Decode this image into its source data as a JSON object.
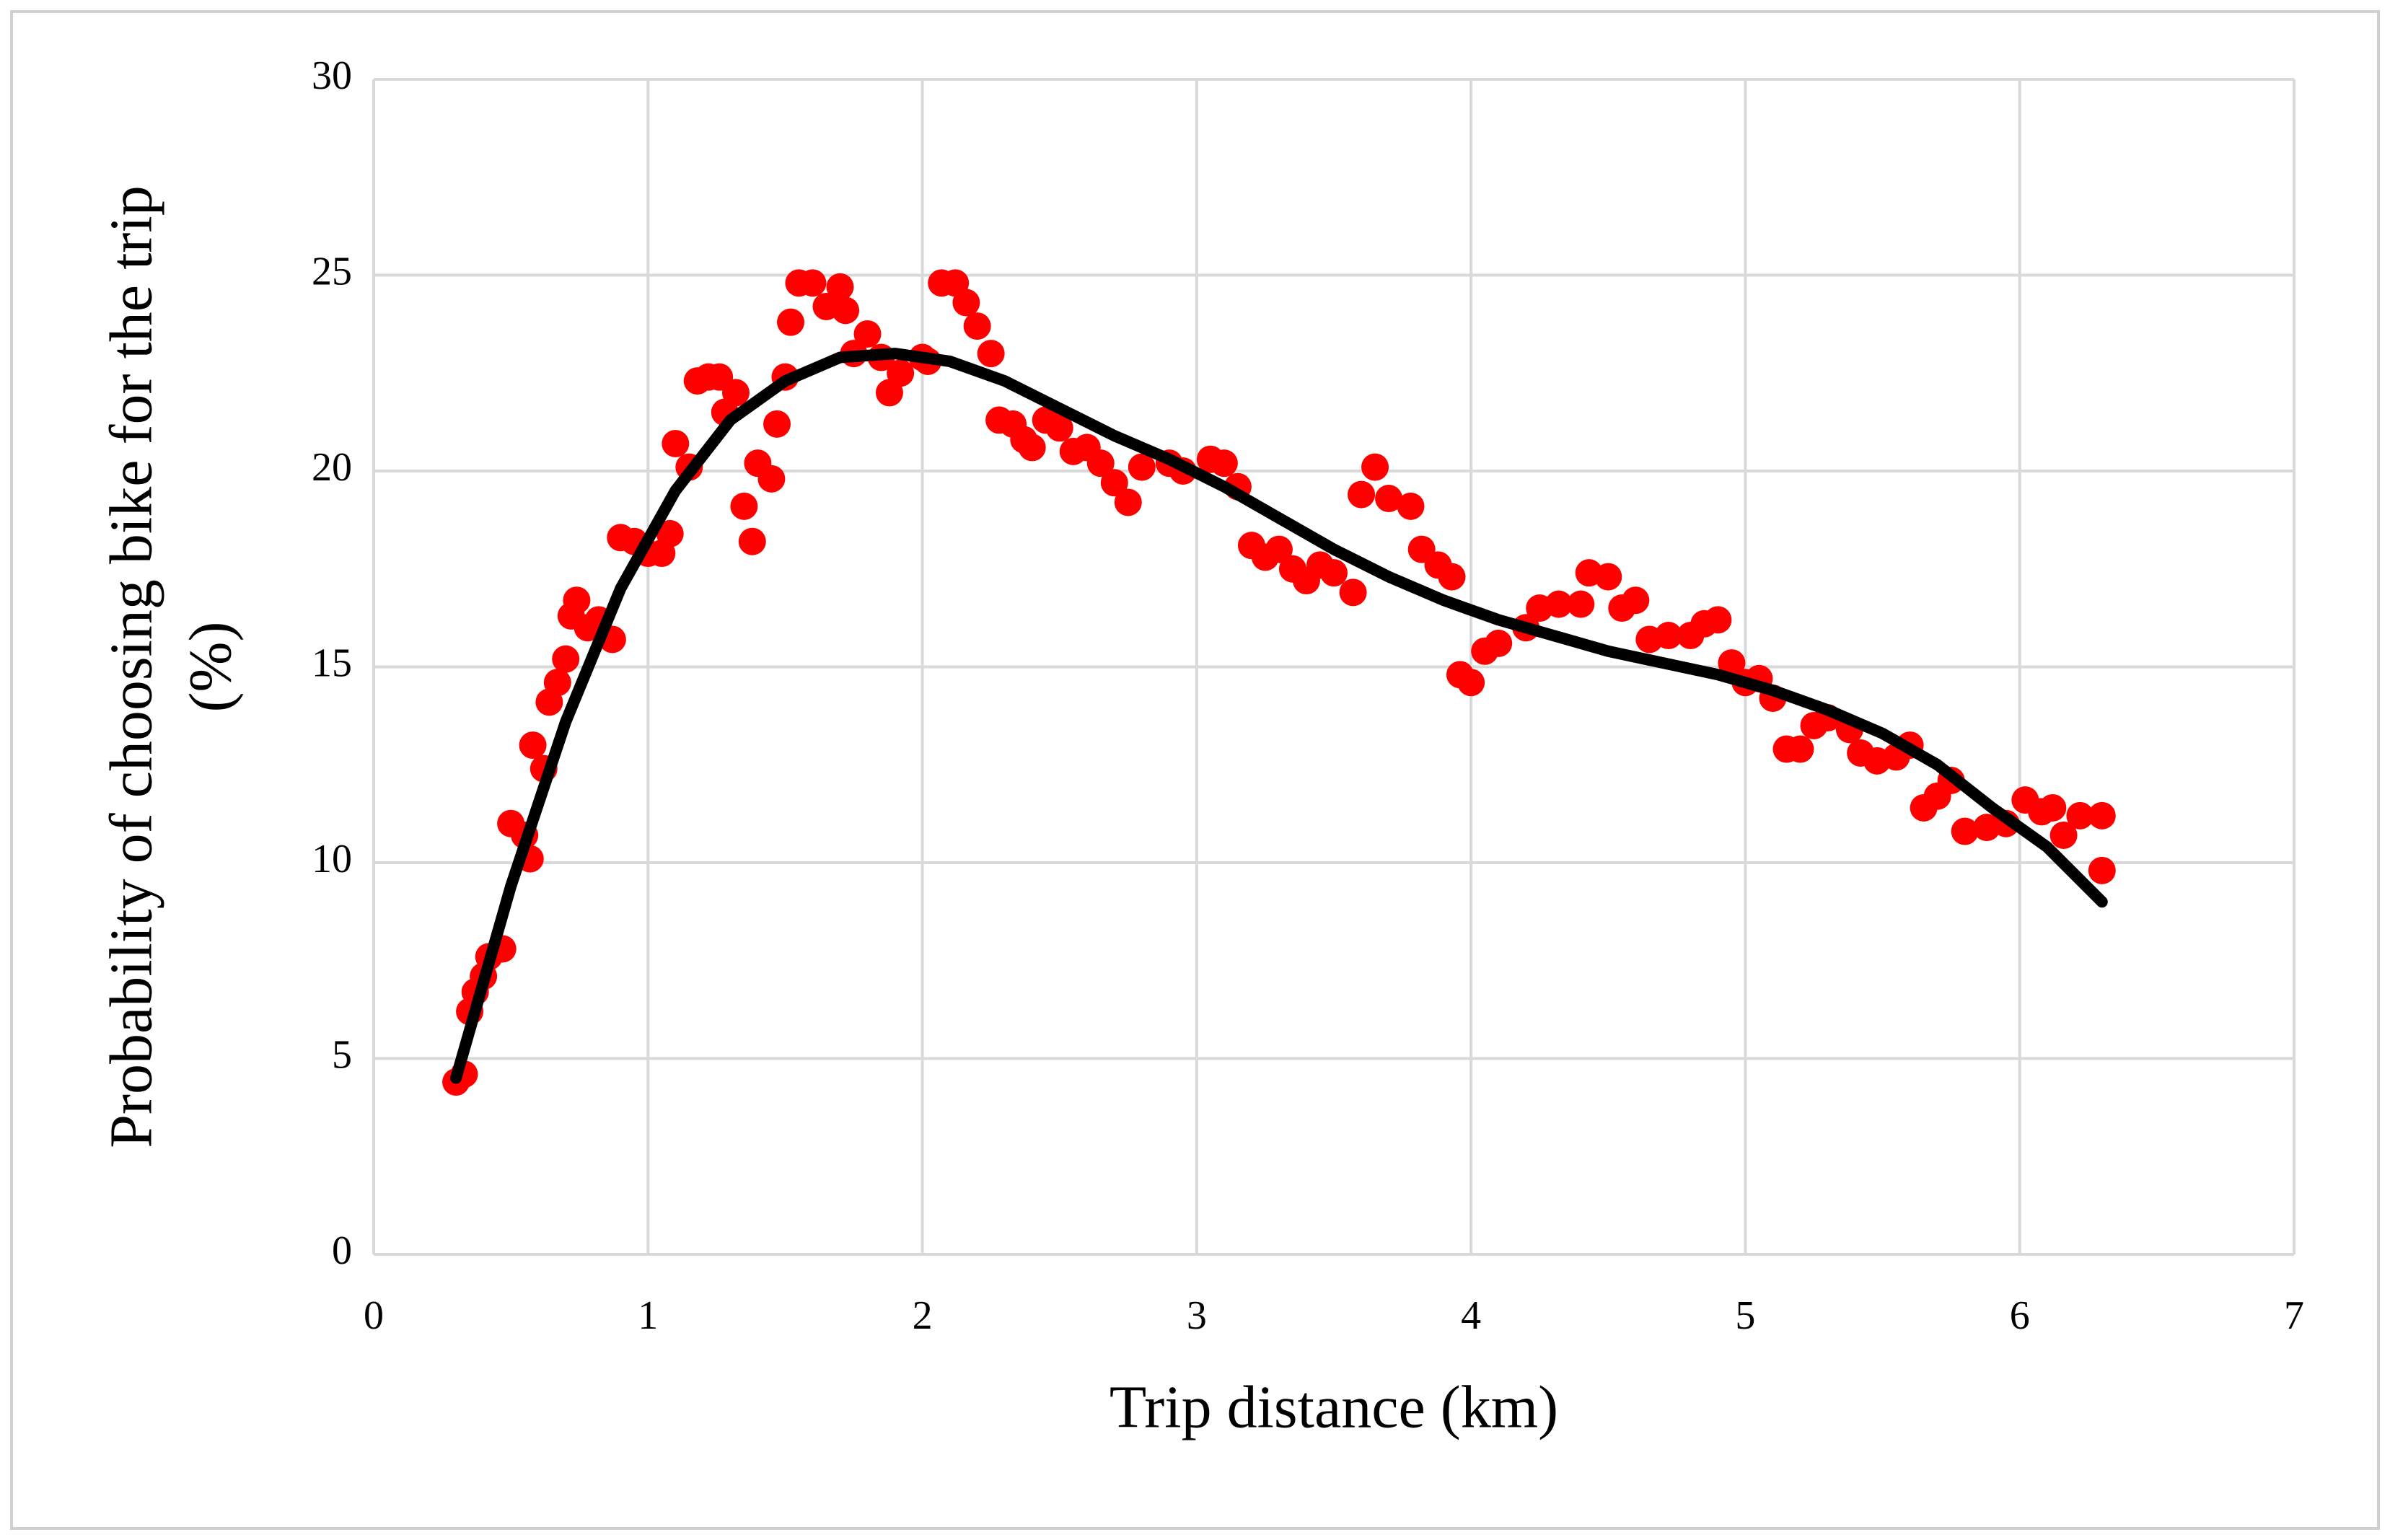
{
  "chart_data": {
    "type": "scatter",
    "xlabel": "Trip distance (km)",
    "ylabel": [
      "Probability of choosing bike for the trip",
      "(%)"
    ],
    "xlim": [
      0,
      7
    ],
    "xticks": [
      0,
      1,
      2,
      3,
      4,
      5,
      6,
      7
    ],
    "ylim": [
      0,
      30
    ],
    "yticks": [
      0,
      5,
      10,
      15,
      20,
      25,
      30
    ],
    "grid": true,
    "series": [
      {
        "style": "markers",
        "color": "#ff0000",
        "x": [
          0.3,
          0.33,
          0.35,
          0.37,
          0.4,
          0.42,
          0.47,
          0.5,
          0.55,
          0.57,
          0.58,
          0.62,
          0.64,
          0.67,
          0.7,
          0.72,
          0.74,
          0.78,
          0.82,
          0.87,
          0.9,
          0.95,
          1.0,
          1.05,
          1.08,
          1.1,
          1.15,
          1.18,
          1.22,
          1.26,
          1.28,
          1.32,
          1.35,
          1.38,
          1.4,
          1.45,
          1.47,
          1.5,
          1.52,
          1.55,
          1.6,
          1.65,
          1.7,
          1.72,
          1.75,
          1.8,
          1.85,
          1.88,
          1.92,
          2.0,
          2.02,
          2.07,
          2.12,
          2.16,
          2.2,
          2.25,
          2.28,
          2.33,
          2.37,
          2.4,
          2.45,
          2.5,
          2.55,
          2.6,
          2.65,
          2.7,
          2.75,
          2.8,
          2.9,
          2.95,
          3.05,
          3.1,
          3.15,
          3.2,
          3.25,
          3.3,
          3.35,
          3.4,
          3.45,
          3.5,
          3.57,
          3.6,
          3.65,
          3.7,
          3.78,
          3.82,
          3.88,
          3.93,
          3.96,
          4.0,
          4.05,
          4.1,
          4.2,
          4.25,
          4.32,
          4.4,
          4.43,
          4.5,
          4.55,
          4.6,
          4.65,
          4.72,
          4.8,
          4.85,
          4.9,
          4.95,
          5.0,
          5.05,
          5.1,
          5.15,
          5.2,
          5.25,
          5.3,
          5.38,
          5.42,
          5.48,
          5.55,
          5.6,
          5.65,
          5.7,
          5.75,
          5.8,
          5.88,
          5.95,
          6.02,
          6.08,
          6.12,
          6.16,
          6.22,
          6.3,
          6.3
        ],
        "values": [
          4.4,
          4.6,
          6.2,
          6.7,
          7.1,
          7.6,
          7.8,
          11.0,
          10.7,
          10.1,
          13.0,
          12.4,
          14.1,
          14.6,
          15.2,
          16.3,
          16.7,
          16.0,
          16.2,
          15.7,
          18.3,
          18.2,
          17.9,
          17.9,
          18.4,
          20.7,
          20.1,
          22.3,
          22.4,
          22.4,
          21.5,
          22.0,
          19.1,
          18.2,
          20.2,
          19.8,
          21.2,
          22.4,
          23.8,
          24.8,
          24.8,
          24.2,
          24.7,
          24.1,
          23.0,
          23.5,
          22.9,
          22.0,
          22.5,
          22.9,
          22.8,
          24.8,
          24.8,
          24.3,
          23.7,
          23.0,
          21.3,
          21.2,
          20.8,
          20.6,
          21.3,
          21.1,
          20.5,
          20.6,
          20.2,
          19.7,
          19.2,
          20.1,
          20.2,
          20.0,
          20.3,
          20.2,
          19.6,
          18.1,
          17.8,
          18.0,
          17.5,
          17.2,
          17.6,
          17.4,
          16.9,
          19.4,
          20.1,
          19.3,
          19.1,
          18.0,
          17.6,
          17.3,
          14.8,
          14.6,
          15.4,
          15.6,
          16.0,
          16.5,
          16.6,
          16.6,
          17.4,
          17.3,
          16.5,
          16.7,
          15.7,
          15.8,
          15.8,
          16.1,
          16.2,
          15.1,
          14.6,
          14.7,
          14.2,
          12.9,
          12.9,
          13.5,
          13.7,
          13.4,
          12.8,
          12.6,
          12.7,
          13.0,
          11.4,
          11.7,
          12.1,
          10.8,
          10.9,
          11.0,
          11.6,
          11.3,
          11.4,
          10.7,
          11.2,
          11.2,
          9.8
        ]
      },
      {
        "style": "line",
        "color": "#000000",
        "x": [
          0.3,
          0.5,
          0.7,
          0.9,
          1.1,
          1.3,
          1.5,
          1.7,
          1.9,
          2.1,
          2.3,
          2.5,
          2.7,
          2.9,
          3.1,
          3.3,
          3.5,
          3.7,
          3.9,
          4.1,
          4.3,
          4.5,
          4.7,
          4.9,
          5.1,
          5.3,
          5.5,
          5.7,
          5.9,
          6.1,
          6.3
        ],
        "values": [
          4.5,
          9.4,
          13.6,
          17.0,
          19.5,
          21.3,
          22.3,
          22.9,
          23.0,
          22.8,
          22.3,
          21.6,
          20.9,
          20.3,
          19.6,
          18.8,
          18.0,
          17.3,
          16.7,
          16.2,
          15.8,
          15.4,
          15.1,
          14.8,
          14.4,
          13.9,
          13.3,
          12.5,
          11.4,
          10.4,
          9.0
        ]
      }
    ]
  }
}
